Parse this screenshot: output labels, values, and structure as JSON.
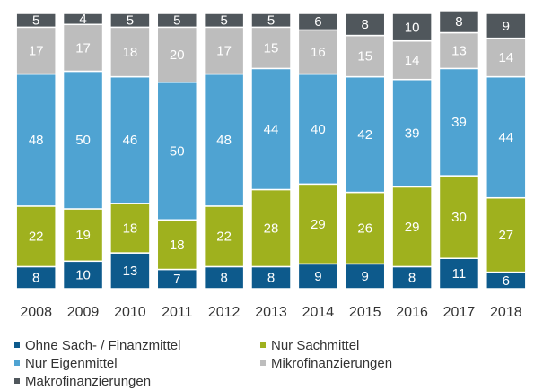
{
  "chart_data": {
    "type": "stacked_bar",
    "categories": [
      "2008",
      "2009",
      "2010",
      "2011",
      "2012",
      "2013",
      "2014",
      "2015",
      "2016",
      "2017",
      "2018"
    ],
    "series": [
      {
        "name": "Ohne Sach- / Finanzmittel",
        "color": "#0d5a8c",
        "values": [
          8,
          10,
          13,
          7,
          8,
          8,
          9,
          9,
          8,
          11,
          6
        ]
      },
      {
        "name": "Nur Sachmittel",
        "color": "#9fb11e",
        "values": [
          22,
          19,
          18,
          18,
          22,
          28,
          29,
          26,
          29,
          30,
          27
        ]
      },
      {
        "name": "Nur Eigenmittel",
        "color": "#4fa3d2",
        "values": [
          48,
          50,
          46,
          50,
          48,
          44,
          40,
          42,
          39,
          39,
          44
        ]
      },
      {
        "name": "Mikrofinanzierungen",
        "color": "#bdbdbd",
        "values": [
          17,
          17,
          18,
          20,
          17,
          15,
          16,
          15,
          14,
          13,
          14
        ]
      },
      {
        "name": "Makrofinanzierungen",
        "color": "#50575c",
        "values": [
          5,
          4,
          5,
          5,
          5,
          5,
          6,
          8,
          10,
          8,
          9
        ]
      }
    ]
  }
}
